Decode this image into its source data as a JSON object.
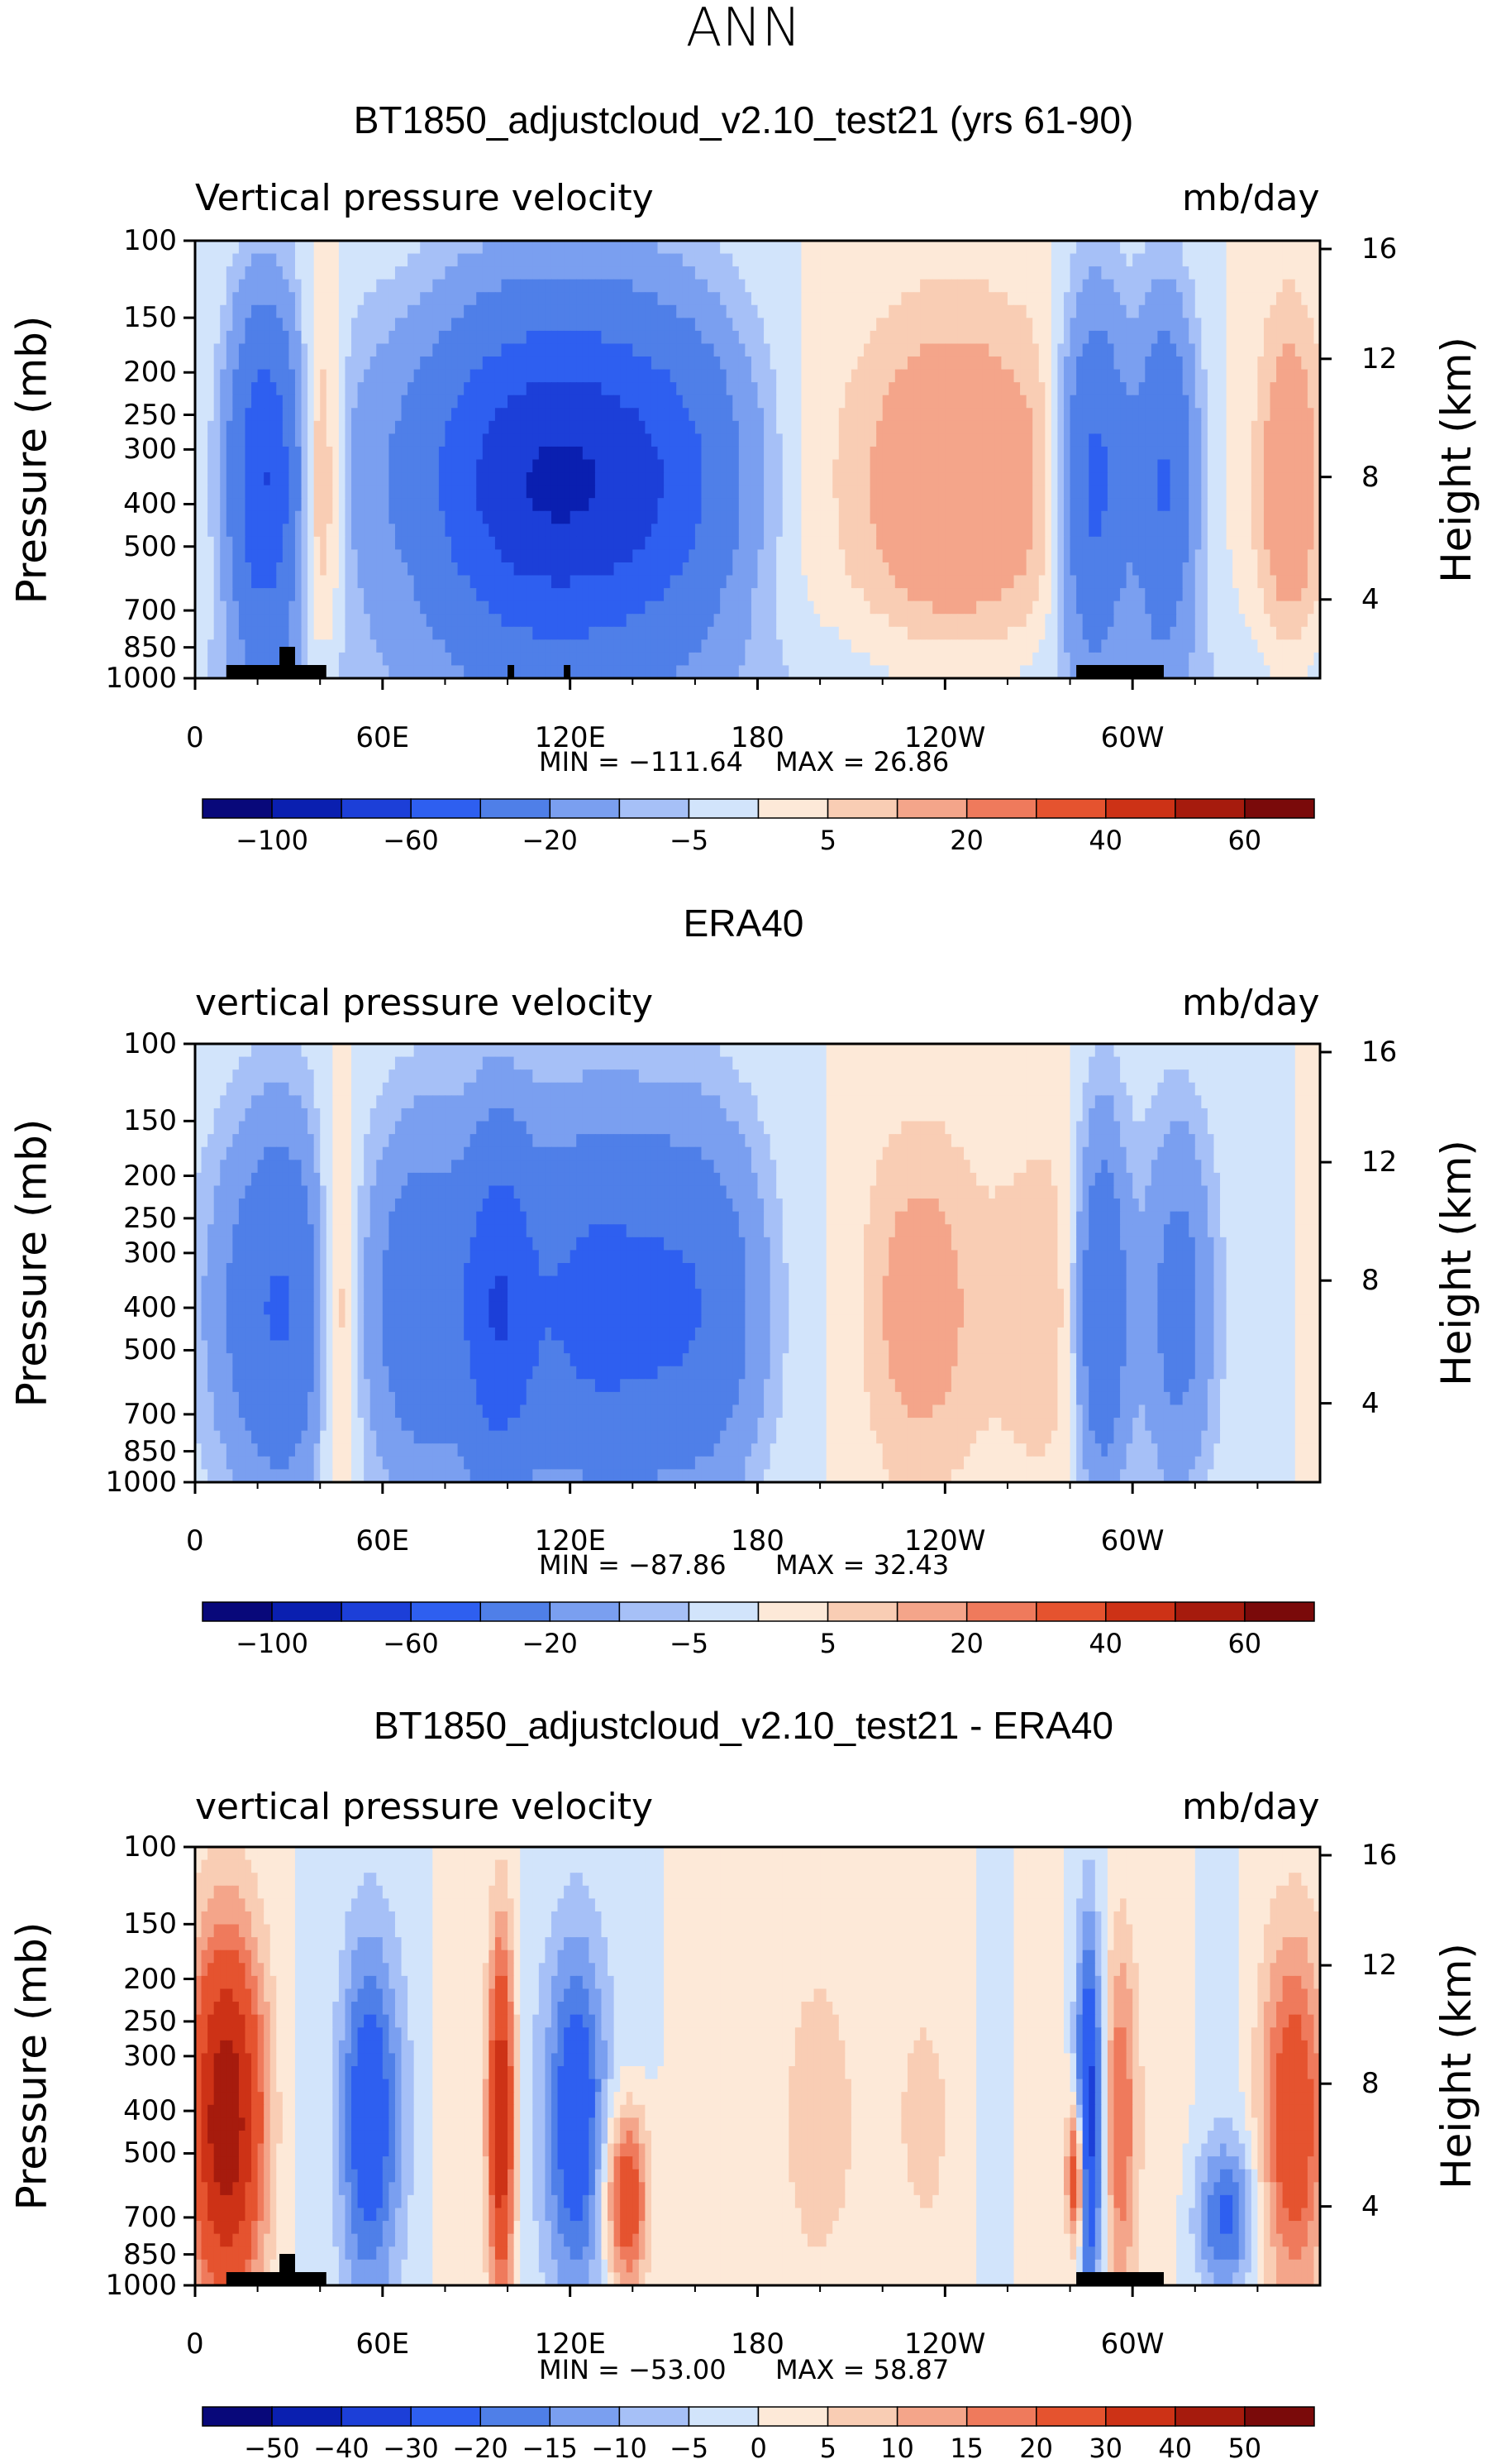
{
  "season": "ANN",
  "chart_data": [
    {
      "type": "heatmap",
      "title": "BT1850_adjustcloud_v2.10_test21 (yrs 61-90)",
      "subtitle_left": "Vertical pressure velocity",
      "subtitle_right": "mb/day",
      "ylabel": "Pressure (mb)",
      "ylabel_right": "Height (km)",
      "y_ticks": [
        "100",
        "150",
        "200",
        "250",
        "300",
        "400",
        "500",
        "700",
        "850",
        "1000"
      ],
      "y_ticks_right": [
        "16",
        "12",
        "8",
        "4"
      ],
      "x_ticks": [
        "0",
        "60E",
        "120E",
        "180",
        "120W",
        "60W"
      ],
      "min_label": "MIN = −111.64",
      "max_label": "MAX =   26.86",
      "min": -111.64,
      "max": 26.86,
      "colorbar_ticks": [
        "−100",
        "−60",
        "−20",
        "−5",
        "5",
        "20",
        "40",
        "60"
      ],
      "colorbar_levels": [
        -120,
        -100,
        -80,
        -60,
        -40,
        -20,
        -10,
        -5,
        0,
        5,
        10,
        20,
        30,
        40,
        50,
        60,
        70
      ]
    },
    {
      "type": "heatmap",
      "title": "ERA40",
      "subtitle_left": "vertical pressure velocity",
      "subtitle_right": "mb/day",
      "ylabel": "Pressure (mb)",
      "ylabel_right": "Height (km)",
      "y_ticks": [
        "100",
        "150",
        "200",
        "250",
        "300",
        "400",
        "500",
        "700",
        "850",
        "1000"
      ],
      "y_ticks_right": [
        "16",
        "12",
        "8",
        "4"
      ],
      "x_ticks": [
        "0",
        "60E",
        "120E",
        "180",
        "120W",
        "60W"
      ],
      "min_label": "MIN = −87.86",
      "max_label": "MAX =   32.43",
      "min": -87.86,
      "max": 32.43,
      "colorbar_ticks": [
        "−100",
        "−60",
        "−20",
        "−5",
        "5",
        "20",
        "40",
        "60"
      ],
      "colorbar_levels": [
        -120,
        -100,
        -80,
        -60,
        -40,
        -20,
        -10,
        -5,
        0,
        5,
        10,
        20,
        30,
        40,
        50,
        60,
        70
      ]
    },
    {
      "type": "heatmap",
      "title": "BT1850_adjustcloud_v2.10_test21 - ERA40",
      "subtitle_left": "vertical pressure velocity",
      "subtitle_right": "mb/day",
      "ylabel": "Pressure (mb)",
      "ylabel_right": "Height (km)",
      "y_ticks": [
        "100",
        "150",
        "200",
        "250",
        "300",
        "400",
        "500",
        "700",
        "850",
        "1000"
      ],
      "y_ticks_right": [
        "16",
        "12",
        "8",
        "4"
      ],
      "x_ticks": [
        "0",
        "60E",
        "120E",
        "180",
        "120W",
        "60W"
      ],
      "min_label": "MIN = −53.00",
      "max_label": "MAX =   58.87",
      "min": -53.0,
      "max": 58.87,
      "colorbar_ticks": [
        "−50",
        "−40",
        "−30",
        "−20",
        "−15",
        "−10",
        "−5",
        "0",
        "5",
        "10",
        "15",
        "20",
        "30",
        "40",
        "50"
      ],
      "colorbar_levels": [
        -60,
        -50,
        -40,
        -30,
        -20,
        -15,
        -10,
        -5,
        0,
        5,
        10,
        15,
        20,
        30,
        40,
        50,
        60
      ]
    }
  ],
  "colors": {
    "palette": [
      "#08087a",
      "#0a1fb0",
      "#1c3fd8",
      "#2e5ff0",
      "#4f7fe8",
      "#7a9ff0",
      "#a6c0f7",
      "#d2e4fb",
      "#fde9d8",
      "#f9cdb4",
      "#f4a58a",
      "#ef7a5c",
      "#e5532f",
      "#cd3216",
      "#a61b0d",
      "#7a0a0a"
    ],
    "land": "#000000"
  }
}
